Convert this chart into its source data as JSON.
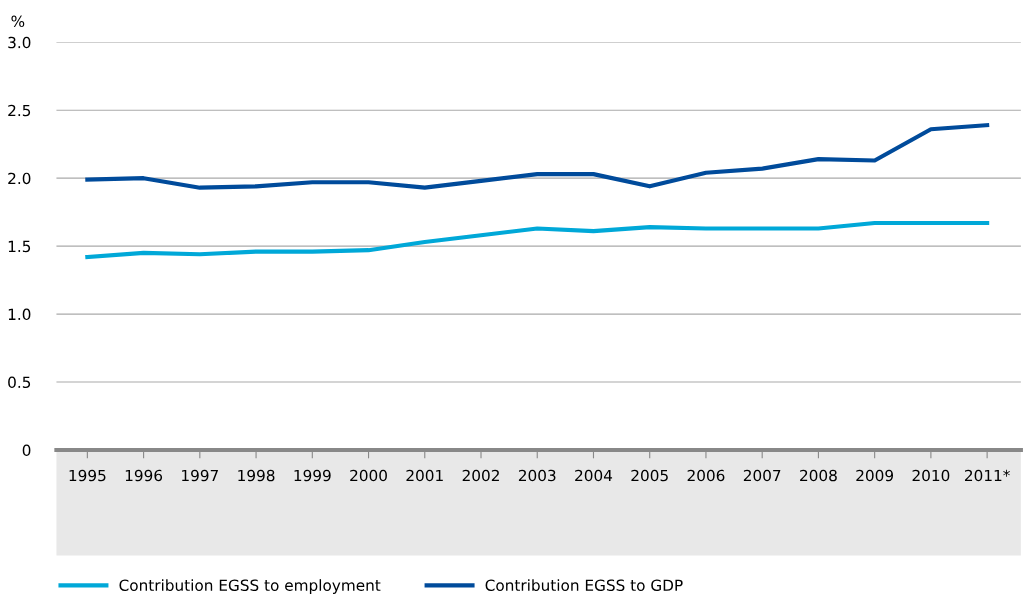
{
  "chart_data": {
    "type": "line",
    "ylabel": "%",
    "categories": [
      "1995",
      "1996",
      "1997",
      "1998",
      "1999",
      "2000",
      "2001",
      "2002",
      "2003",
      "2004",
      "2005",
      "2006",
      "2007",
      "2008",
      "2009",
      "2010",
      "2011*"
    ],
    "series": [
      {
        "name": "Contribution EGSS to employment",
        "color": "#00a8d8",
        "values": [
          1.42,
          1.45,
          1.44,
          1.46,
          1.46,
          1.47,
          1.53,
          1.58,
          1.63,
          1.61,
          1.64,
          1.63,
          1.63,
          1.63,
          1.67,
          1.67,
          1.67
        ]
      },
      {
        "name": "Contribution EGSS to GDP",
        "color": "#004b9b",
        "values": [
          1.99,
          2.0,
          1.93,
          1.94,
          1.97,
          1.97,
          1.93,
          1.98,
          2.03,
          2.03,
          1.94,
          2.04,
          2.07,
          2.14,
          2.13,
          2.36,
          2.39
        ]
      }
    ],
    "ylim": [
      0,
      3.0
    ],
    "yticks": [
      0,
      {
        "value": 0.5,
        "label": "0.5"
      },
      {
        "value": 1.0,
        "label": "1.0"
      },
      {
        "value": 1.5,
        "label": "1.5"
      },
      {
        "value": 2.0,
        "label": "2.0"
      },
      {
        "value": 2.5,
        "label": "2.5"
      },
      {
        "value": 3.0,
        "label": "3.0"
      }
    ],
    "grid": "y",
    "legend": "bottom left",
    "marker": "none",
    "line_style": "solid"
  }
}
